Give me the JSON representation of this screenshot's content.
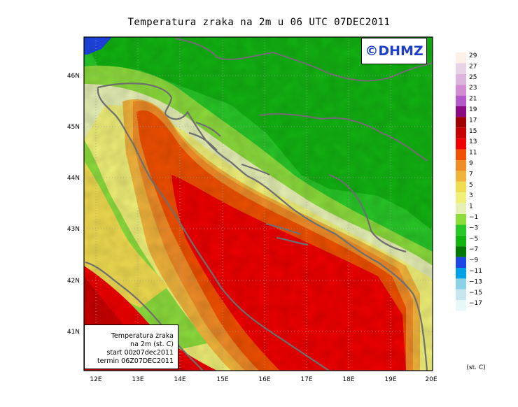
{
  "title": "Temperatura zraka na 2m u 06 UTC 07DEC2011",
  "logo": "©DHMZ",
  "info_box": {
    "line1": "Temperatura zraka",
    "line2": "na 2m (st. C)",
    "line3": "start 00z07dec2011",
    "line4": "termin 06Z07DEC2011"
  },
  "lat_labels": [
    "41N",
    "42N",
    "43N",
    "44N",
    "45N",
    "46N"
  ],
  "lon_labels": [
    "12E",
    "13E",
    "14E",
    "15E",
    "16E",
    "17E",
    "18E",
    "19E",
    "20E"
  ],
  "legend": {
    "unit": "(st. C)",
    "labels": [
      "29",
      "27",
      "25",
      "23",
      "21",
      "19",
      "17",
      "15",
      "13",
      "11",
      "9",
      "7",
      "5",
      "3",
      "1",
      "−1",
      "−3",
      "−5",
      "−7",
      "−9",
      "−11",
      "−13",
      "−15",
      "−17"
    ],
    "colors": [
      "#fdf0e6",
      "#e8d2e6",
      "#dcb4dc",
      "#d28cd2",
      "#b45ac8",
      "#8c0a82",
      "#a00000",
      "#c80000",
      "#f00000",
      "#f05000",
      "#f08c28",
      "#f0b43c",
      "#f0dc50",
      "#f0f078",
      "#e6f0b4",
      "#8cdc3c",
      "#28c828",
      "#12b412",
      "#007800",
      "#1e46e6",
      "#00a0e6",
      "#8cd2e6",
      "#c8e6f0",
      "#e6f8f8"
    ]
  },
  "colors": {
    "coast": "#6e6e6e",
    "grid": "#a0a0a0"
  }
}
